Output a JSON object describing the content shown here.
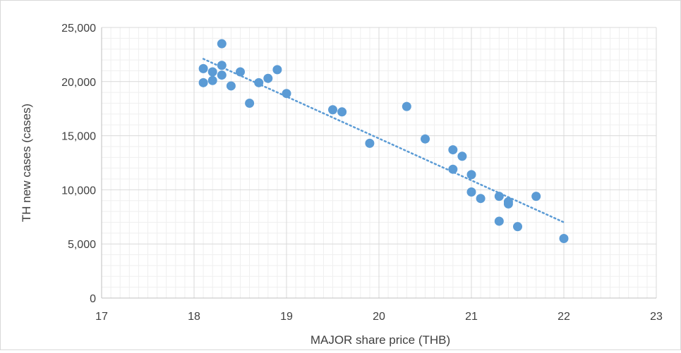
{
  "chart_data": {
    "type": "scatter",
    "title": "",
    "xlabel": "MAJOR share price (THB)",
    "ylabel": "TH new cases (cases)",
    "xlim": [
      17,
      23
    ],
    "ylim": [
      0,
      25000
    ],
    "x_ticks": [
      "17",
      "18",
      "19",
      "20",
      "21",
      "22",
      "23"
    ],
    "y_ticks": [
      "0",
      "5,000",
      "10,000",
      "15,000",
      "20,000",
      "25,000"
    ],
    "grid": true,
    "legend": "none",
    "marker_color": "#5b9bd5",
    "trendline": {
      "type": "linear",
      "style": "dotted",
      "color": "#5b9bd5",
      "x": [
        18.1,
        22.0
      ],
      "y": [
        22100,
        7000
      ]
    },
    "series": [
      {
        "x": [
          18.1,
          18.1,
          18.2,
          18.2,
          18.3,
          18.3,
          18.3,
          18.4,
          18.5,
          18.6,
          18.7,
          18.8,
          18.9,
          19.0,
          19.5,
          19.6,
          19.9,
          20.3,
          20.5,
          20.8,
          20.8,
          20.9,
          21.0,
          21.0,
          21.1,
          21.3,
          21.3,
          21.4,
          21.4,
          21.5,
          21.7,
          22.0
        ],
        "y": [
          21200,
          19900,
          20900,
          20100,
          23500,
          21500,
          20600,
          19600,
          20900,
          18000,
          19900,
          20300,
          21100,
          18900,
          17400,
          17200,
          14300,
          17700,
          14700,
          13700,
          11900,
          13100,
          11400,
          9800,
          9200,
          9400,
          7100,
          8900,
          8700,
          6600,
          9400,
          5500
        ]
      }
    ]
  }
}
